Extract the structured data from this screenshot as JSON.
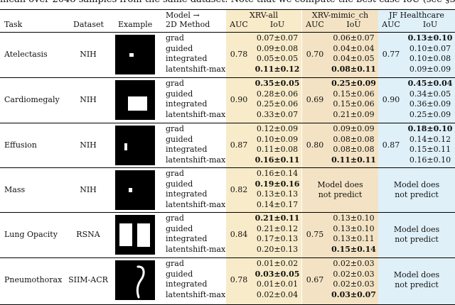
{
  "caption": "mean over 2048 samples from the same dataset. Note that we compute the best case IoU (see §3.",
  "header": {
    "task": "Task",
    "dataset": "Dataset",
    "example": "Example",
    "model_line1": "Model →",
    "model_line2": "2D Method",
    "groups": [
      "XRV-all",
      "XRV-mimic_ch",
      "JF Healthcare"
    ],
    "auc": "AUC",
    "iou": "IoU"
  },
  "methods": [
    "grad",
    "guided",
    "integrated",
    "latentshift-max"
  ],
  "no_predict_line1": "Model does",
  "no_predict_line2": "not predict",
  "rows": [
    {
      "task": "Atelectasis",
      "dataset": "NIH",
      "xrv_all": {
        "auc": "0.78",
        "iou": [
          "0.07±0.07",
          "0.09±0.08",
          "0.05±0.05",
          "0.11±0.12"
        ],
        "bold": 3
      },
      "xrv_mimic": {
        "auc": "0.70",
        "iou": [
          "0.06±0.07",
          "0.04±0.04",
          "0.04±0.05",
          "0.08±0.11"
        ],
        "bold": 3
      },
      "jf": {
        "auc": "0.77",
        "iou": [
          "0.13±0.10",
          "0.10±0.07",
          "0.10±0.08",
          "0.09±0.09"
        ],
        "bold": 0
      }
    },
    {
      "task": "Cardiomegaly",
      "dataset": "NIH",
      "xrv_all": {
        "auc": "0.90",
        "iou": [
          "0.35±0.05",
          "0.28±0.06",
          "0.25±0.06",
          "0.33±0.07"
        ],
        "bold": 0
      },
      "xrv_mimic": {
        "auc": "0.69",
        "iou": [
          "0.25±0.09",
          "0.15±0.06",
          "0.15±0.06",
          "0.21±0.09"
        ],
        "bold": 0
      },
      "jf": {
        "auc": "0.90",
        "iou": [
          "0.45±0.04",
          "0.34±0.05",
          "0.36±0.09",
          "0.25±0.09"
        ],
        "bold": 0
      }
    },
    {
      "task": "Effusion",
      "dataset": "NIH",
      "xrv_all": {
        "auc": "0.87",
        "iou": [
          "0.12±0.09",
          "0.10±0.09",
          "0.11±0.08",
          "0.16±0.11"
        ],
        "bold": 3
      },
      "xrv_mimic": {
        "auc": "0.80",
        "iou": [
          "0.09±0.09",
          "0.08±0.08",
          "0.08±0.08",
          "0.11±0.11"
        ],
        "bold": 3
      },
      "jf": {
        "auc": "0.87",
        "iou": [
          "0.18±0.10",
          "0.14±0.12",
          "0.15±0.11",
          "0.16±0.10"
        ],
        "bold": 0
      }
    },
    {
      "task": "Mass",
      "dataset": "NIH",
      "xrv_all": {
        "auc": "0.82",
        "iou": [
          "0.16±0.14",
          "0.19±0.16",
          "0.13±0.13",
          "0.14±0.17"
        ],
        "bold": 1
      },
      "xrv_mimic": null,
      "jf": null
    },
    {
      "task": "Lung Opacity",
      "dataset": "RSNA",
      "xrv_all": {
        "auc": "0.84",
        "iou": [
          "0.21±0.11",
          "0.21±0.12",
          "0.17±0.13",
          "0.20±0.13"
        ],
        "bold": 0
      },
      "xrv_mimic": {
        "auc": "0.75",
        "iou": [
          "0.13±0.10",
          "0.13±0.10",
          "0.13±0.11",
          "0.15±0.14"
        ],
        "bold": 3
      },
      "jf": null
    },
    {
      "task": "Pneumothorax",
      "dataset": "SIIM-ACR",
      "xrv_all": {
        "auc": "0.78",
        "iou": [
          "0.01±0.02",
          "0.03±0.05",
          "0.01±0.01",
          "0.02±0.04"
        ],
        "bold": 1
      },
      "xrv_mimic": {
        "auc": "0.67",
        "iou": [
          "0.02±0.03",
          "0.02±0.03",
          "0.02±0.03",
          "0.03±0.07"
        ],
        "bold": 3
      },
      "jf": null
    }
  ]
}
